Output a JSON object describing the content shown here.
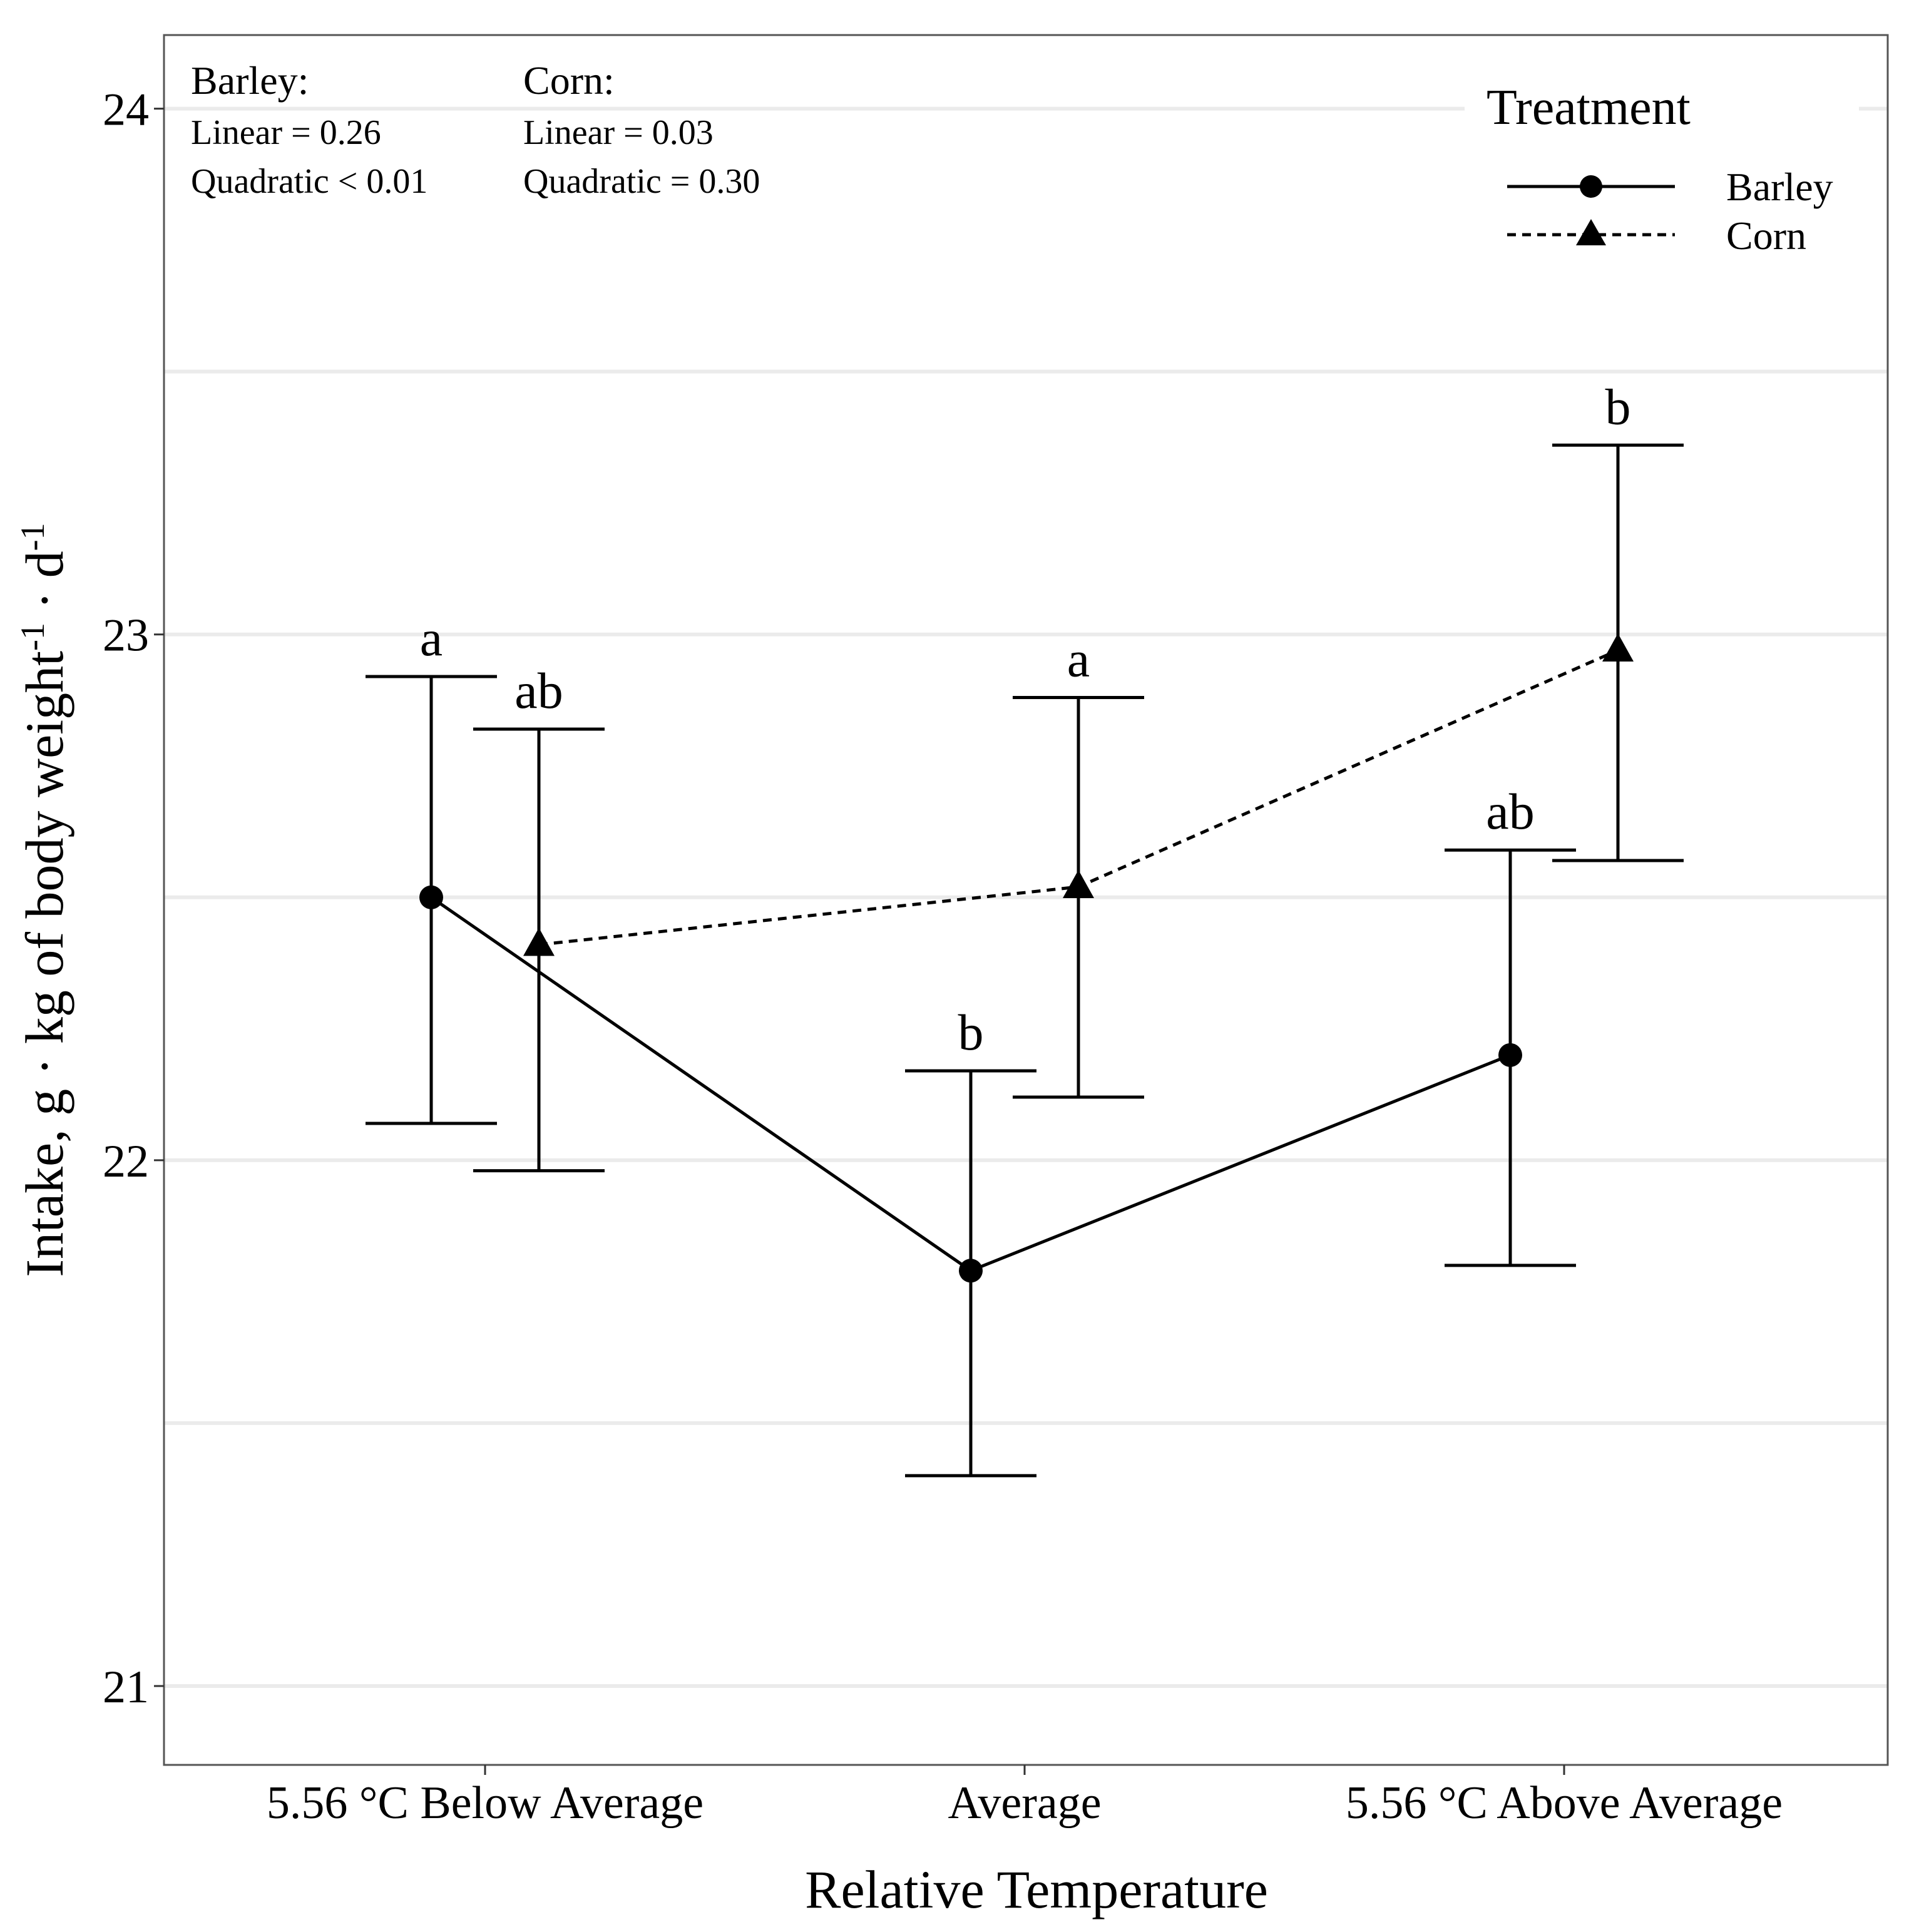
{
  "chart_data": {
    "type": "line",
    "xlabel": "Relative Temperature",
    "ylabel": {
      "main": "Intake, g · kg of body weight",
      "sup1": "-1",
      "mid": " · d",
      "sup2": "-1"
    },
    "categories": [
      "5.56 °C Below Average",
      "Average",
      "5.56 °C Above Average"
    ],
    "ylim": [
      20.85,
      24.14
    ],
    "yticks": [
      21,
      22,
      23,
      24
    ],
    "ytick_labels": [
      "21",
      "22",
      "23",
      "24"
    ],
    "grid": true,
    "series": [
      {
        "name": "Barley",
        "marker": "circle",
        "line": "solid",
        "values": [
          22.5,
          21.79,
          22.2
        ],
        "lower": [
          22.07,
          21.4,
          21.8
        ],
        "upper": [
          22.92,
          22.17,
          22.59
        ],
        "letters": [
          "a",
          "b",
          "ab"
        ]
      },
      {
        "name": "Corn",
        "marker": "triangle",
        "line": "dashed",
        "values": [
          22.41,
          22.52,
          22.97
        ],
        "lower": [
          21.98,
          22.12,
          22.57
        ],
        "upper": [
          22.82,
          22.88,
          23.36
        ],
        "letters": [
          "ab",
          "a",
          "b"
        ]
      }
    ],
    "legend": {
      "title": "Treatment",
      "position": "top-right",
      "items": [
        "Barley",
        "Corn"
      ]
    },
    "annotations": [
      {
        "title": "Barley:",
        "lines": [
          "Linear = 0.26",
          "Quadratic < 0.01"
        ]
      },
      {
        "title": "Corn:",
        "lines": [
          "Linear = 0.03",
          "Quadratic = 0.30"
        ]
      }
    ]
  }
}
